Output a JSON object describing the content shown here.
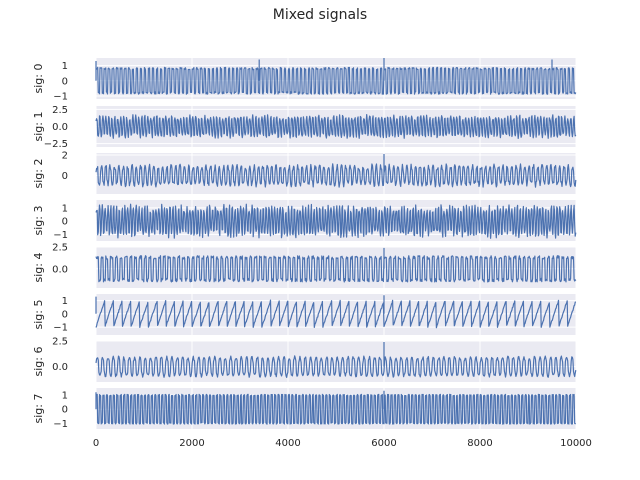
{
  "chart_data": {
    "type": "line",
    "title": "Mixed signals",
    "background": "#eaeaf2",
    "grid": true,
    "line_color": "#4c72b0",
    "x_range": [
      0,
      10000
    ],
    "x_ticks": [
      0,
      2000,
      4000,
      6000,
      8000,
      10000
    ],
    "x_tick_labels": [
      "0",
      "2000",
      "4000",
      "6000",
      "8000",
      "10000"
    ],
    "n_points": 10000,
    "subplots": [
      {
        "ylabel": "sig: 0",
        "ylim": [
          -1.2,
          1.5
        ],
        "yticks": [
          -1,
          0,
          1
        ],
        "ytick_labels": [
          "−1",
          "0",
          "1"
        ],
        "waveform": "square",
        "cycles": 120,
        "amplitude": 0.8,
        "noise": 0.08,
        "spikes": [
          [
            0,
            1.3
          ],
          [
            3400,
            1.4
          ],
          [
            6000,
            1.5
          ],
          [
            9500,
            1.4
          ]
        ]
      },
      {
        "ylabel": "sig: 1",
        "ylim": [
          -3,
          3
        ],
        "yticks": [
          -2.5,
          0,
          2.5
        ],
        "ytick_labels": [
          "−2.5",
          "0.0",
          "2.5"
        ],
        "waveform": "mixed",
        "cycles": 160,
        "amplitude": 1.4,
        "noise": 0.35,
        "spikes": []
      },
      {
        "ylabel": "sig: 2",
        "ylim": [
          -1.8,
          2.2
        ],
        "yticks": [
          0,
          2
        ],
        "ytick_labels": [
          "0",
          "2"
        ],
        "waveform": "mixed",
        "cycles": 110,
        "amplitude": 0.9,
        "noise": 0.25,
        "spikes": [
          [
            6000,
            2.1
          ]
        ]
      },
      {
        "ylabel": "sig: 3",
        "ylim": [
          -1.5,
          1.6
        ],
        "yticks": [
          -1,
          0,
          1
        ],
        "ytick_labels": [
          "−1",
          "0",
          "1"
        ],
        "waveform": "mixed",
        "cycles": 170,
        "amplitude": 1.0,
        "noise": 0.3,
        "spikes": []
      },
      {
        "ylabel": "sig: 4",
        "ylim": [
          -2.2,
          2.5
        ],
        "yticks": [
          0.0,
          2.5
        ],
        "ytick_labels": [
          "0.0",
          "2.5"
        ],
        "waveform": "square",
        "cycles": 100,
        "amplitude": 1.3,
        "noise": 0.2,
        "spikes": [
          [
            6000,
            2.4
          ]
        ]
      },
      {
        "ylabel": "sig: 5",
        "ylim": [
          -1.6,
          1.5
        ],
        "yticks": [
          -1,
          0,
          1
        ],
        "ytick_labels": [
          "−1",
          "0",
          "1"
        ],
        "waveform": "sawtooth",
        "cycles": 55,
        "amplitude": 1.0,
        "noise": 0.06,
        "spikes": [
          [
            0,
            1.3
          ],
          [
            6000,
            1.4
          ]
        ]
      },
      {
        "ylabel": "sig: 6",
        "ylim": [
          -1.5,
          2.5
        ],
        "yticks": [
          0.0,
          2.5
        ],
        "ytick_labels": [
          "0.0",
          "2.5"
        ],
        "waveform": "mixed",
        "cycles": 90,
        "amplitude": 0.9,
        "noise": 0.15,
        "spikes": [
          [
            6000,
            2.4
          ]
        ]
      },
      {
        "ylabel": "sig: 7",
        "ylim": [
          -1.4,
          1.5
        ],
        "yticks": [
          -1,
          0,
          1
        ],
        "ytick_labels": [
          "−1",
          "0",
          "1"
        ],
        "waveform": "square",
        "cycles": 140,
        "amplitude": 1.0,
        "noise": 0.05,
        "spikes": [
          [
            0,
            1.2
          ],
          [
            6000,
            1.3
          ]
        ]
      }
    ]
  }
}
